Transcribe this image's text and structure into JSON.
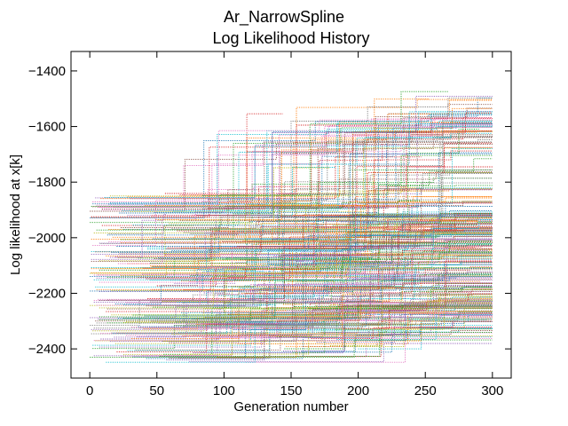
{
  "chart_data": {
    "type": "line",
    "title": "Ar_NarrowSpline",
    "subtitle": "Log Likelihood History",
    "xlabel": "Generation number",
    "ylabel": "Log likelihood at x[k]",
    "xlim": [
      -14,
      314
    ],
    "ylim": [
      -2505,
      -1330
    ],
    "xticks": [
      0,
      50,
      100,
      150,
      200,
      250,
      300
    ],
    "yticks": [
      -2400,
      -2200,
      -2000,
      -1800,
      -1600,
      -1400
    ],
    "xtick_labels": [
      "0",
      "50",
      "100",
      "150",
      "200",
      "250",
      "300"
    ],
    "ytick_labels": [
      "−2400",
      "−2200",
      "−2000",
      "−1800",
      "−1600",
      "−1400"
    ],
    "grid": false,
    "legend": "none",
    "line_style": "dotted",
    "series_count": 420,
    "generation_range": [
      0,
      300
    ],
    "initial_likelihood_range": [
      -2450,
      -1840
    ],
    "final_likelihood_range": [
      -2320,
      -1375
    ],
    "colors": [
      "#1f77b4",
      "#ff7f0e",
      "#2ca02c",
      "#d62728",
      "#9467bd",
      "#8c564b",
      "#e377c2",
      "#7f7f7f",
      "#bcbd22",
      "#17becf"
    ]
  }
}
